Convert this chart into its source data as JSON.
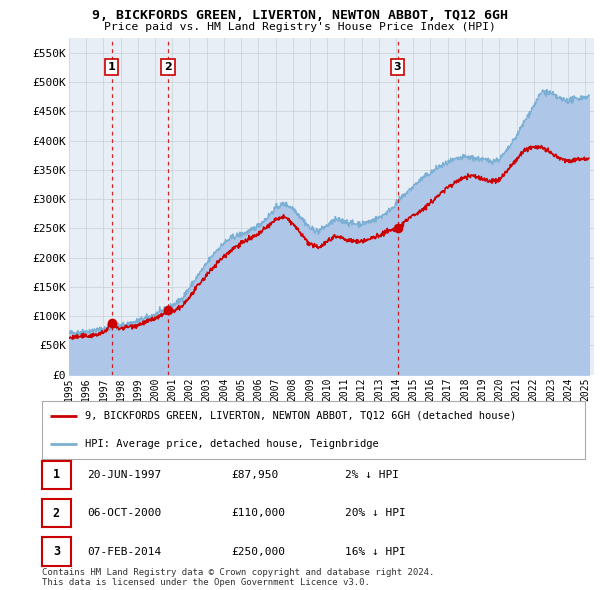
{
  "title": "9, BICKFORDS GREEN, LIVERTON, NEWTON ABBOT, TQ12 6GH",
  "subtitle": "Price paid vs. HM Land Registry's House Price Index (HPI)",
  "ylim": [
    0,
    575000
  ],
  "yticks": [
    0,
    50000,
    100000,
    150000,
    200000,
    250000,
    300000,
    350000,
    400000,
    450000,
    500000,
    550000
  ],
  "ytick_labels": [
    "£0",
    "£50K",
    "£100K",
    "£150K",
    "£200K",
    "£250K",
    "£300K",
    "£350K",
    "£400K",
    "£450K",
    "£500K",
    "£550K"
  ],
  "sales": [
    {
      "date_num": 1997.47,
      "price": 87950,
      "label": "1"
    },
    {
      "date_num": 2000.76,
      "price": 110000,
      "label": "2"
    },
    {
      "date_num": 2014.09,
      "price": 250000,
      "label": "3"
    }
  ],
  "vlines": [
    1997.47,
    2000.76,
    2014.09
  ],
  "legend_entries": [
    "9, BICKFORDS GREEN, LIVERTON, NEWTON ABBOT, TQ12 6GH (detached house)",
    "HPI: Average price, detached house, Teignbridge"
  ],
  "table_rows": [
    {
      "num": "1",
      "date": "20-JUN-1997",
      "price": "£87,950",
      "hpi": "2% ↓ HPI"
    },
    {
      "num": "2",
      "date": "06-OCT-2000",
      "price": "£110,000",
      "hpi": "20% ↓ HPI"
    },
    {
      "num": "3",
      "date": "07-FEB-2014",
      "price": "£250,000",
      "hpi": "16% ↓ HPI"
    }
  ],
  "footer": "Contains HM Land Registry data © Crown copyright and database right 2024.\nThis data is licensed under the Open Government Licence v3.0.",
  "hpi_color": "#aec6e8",
  "hpi_line_color": "#7bafd4",
  "sale_color": "#cc0000",
  "background_color": "#ffffff",
  "chart_bg_color": "#e8eef5",
  "grid_color": "#c8d0d8",
  "vline_color": "#cc0000",
  "xlim_start": 1995.0,
  "xlim_end": 2025.5
}
